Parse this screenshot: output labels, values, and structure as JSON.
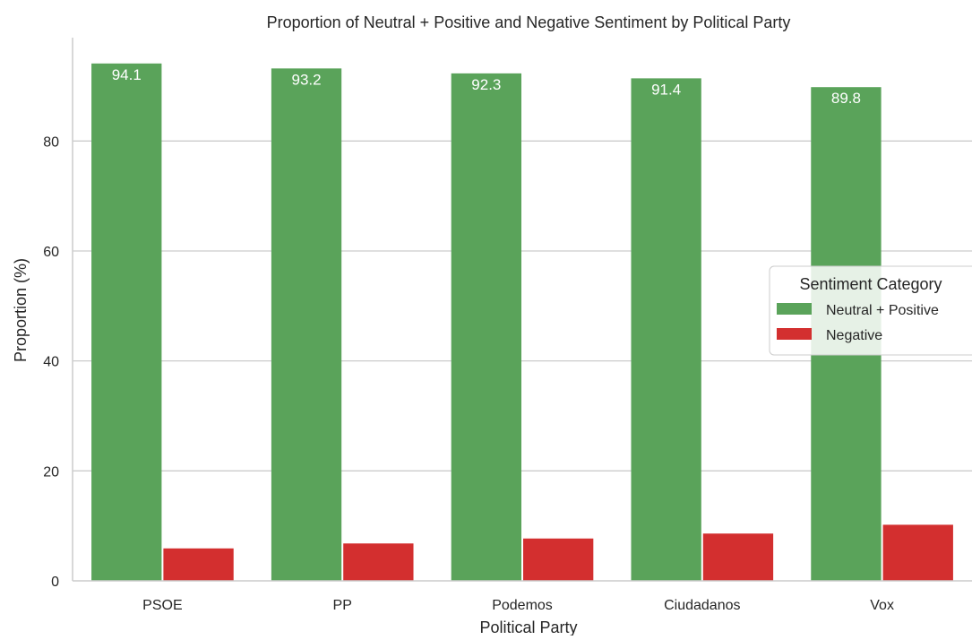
{
  "chart_data": {
    "type": "bar",
    "title": "Proportion of Neutral + Positive and Negative Sentiment by Political Party",
    "xlabel": "Political Party",
    "ylabel": "Proportion (%)",
    "categories": [
      "PSOE",
      "PP",
      "Podemos",
      "Ciudadanos",
      "Vox"
    ],
    "series": [
      {
        "name": "Neutral + Positive",
        "values": [
          94.1,
          93.2,
          92.3,
          91.4,
          89.8
        ],
        "labels": [
          "94.1",
          "93.2",
          "92.3",
          "91.4",
          "89.8"
        ],
        "color": "#5aa35a"
      },
      {
        "name": "Negative",
        "values": [
          5.9,
          6.8,
          7.7,
          8.6,
          10.2
        ],
        "color": "#d32f2f"
      }
    ],
    "yticks": [
      0,
      20,
      40,
      60,
      80
    ],
    "ylim": [
      0,
      98.8
    ],
    "grid": true,
    "legend": {
      "title": "Sentiment Category",
      "placement": "center-right"
    }
  }
}
